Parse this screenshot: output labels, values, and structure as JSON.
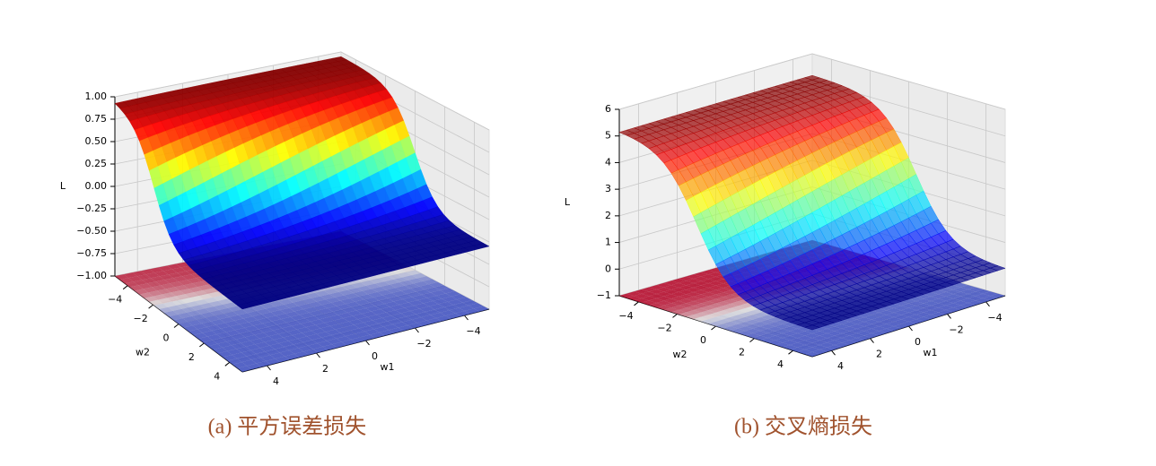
{
  "chart_data": [
    {
      "type": "surface3d",
      "caption": "(a) 平方误差损失",
      "xlabel": "w1",
      "ylabel": "w2",
      "zlabel": "L",
      "xlim": [
        -5,
        5
      ],
      "ylim": [
        -5,
        5
      ],
      "zlim": [
        -1,
        1
      ],
      "xticks": [
        {
          "value": -4,
          "label": "−4"
        },
        {
          "value": -2,
          "label": "−2"
        },
        0,
        2,
        4
      ],
      "yticks": [
        {
          "value": -4,
          "label": "−4"
        },
        {
          "value": -2,
          "label": "−2"
        },
        0,
        2,
        4
      ],
      "zticks": [
        {
          "value": 1,
          "label": "1.00"
        },
        {
          "value": 0.75,
          "label": "0.75"
        },
        {
          "value": 0.5,
          "label": "0.50"
        },
        {
          "value": 0.25,
          "label": "0.25"
        },
        {
          "value": 0,
          "label": "0.00"
        },
        {
          "value": -0.25,
          "label": "−0.25"
        },
        {
          "value": -0.5,
          "label": "−0.50"
        },
        {
          "value": -0.75,
          "label": "−0.75"
        },
        {
          "value": -1,
          "label": "−1.00"
        }
      ]
    },
    {
      "type": "surface3d",
      "caption": "(b) 交叉熵损失",
      "xlabel": "w1",
      "ylabel": "w2",
      "zlabel": "L",
      "xlim": [
        -5,
        5
      ],
      "ylim": [
        -5,
        5
      ],
      "zlim": [
        -1,
        6
      ],
      "xticks": [
        {
          "value": -4,
          "label": "−4"
        },
        {
          "value": -2,
          "label": "−2"
        },
        0,
        2,
        4
      ],
      "yticks": [
        {
          "value": -4,
          "label": "−4"
        },
        {
          "value": -2,
          "label": "−2"
        },
        0,
        2,
        4
      ],
      "zticks": [
        {
          "value": -1,
          "label": "−1"
        },
        0,
        1,
        2,
        3,
        4,
        5,
        6
      ]
    }
  ]
}
